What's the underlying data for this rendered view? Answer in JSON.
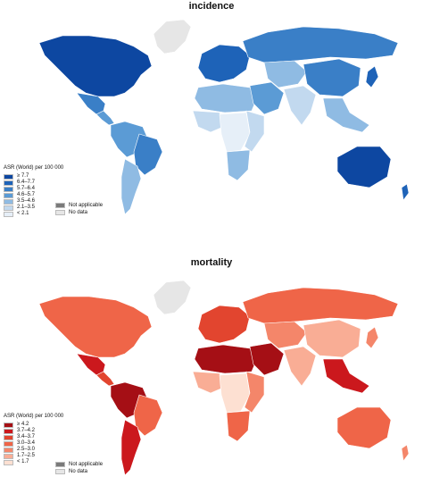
{
  "incidence": {
    "title": "incidence",
    "legend_title": "ASR (World) per 100 000",
    "classes": [
      {
        "label": "≥ 7.7",
        "color": "#0d47a1"
      },
      {
        "label": "6.4–7.7",
        "color": "#1e63b8"
      },
      {
        "label": "5.7–6.4",
        "color": "#3a7fc7"
      },
      {
        "label": "4.6–5.7",
        "color": "#5b9bd5"
      },
      {
        "label": "3.5–4.6",
        "color": "#8fbbe3"
      },
      {
        "label": "2.1–3.5",
        "color": "#c2d9ef"
      },
      {
        "label": "< 2.1",
        "color": "#e6eff8"
      }
    ],
    "not_applicable": "Not applicable",
    "no_data": "No data",
    "regions": {
      "north-america": "#0d47a1",
      "greenland": "#e6e6e6",
      "mexico": "#3a7fc7",
      "central-america": "#5b9bd5",
      "south-america-north": "#5b9bd5",
      "south-america-east": "#3a7fc7",
      "south-america-south": "#8fbbe3",
      "europe": "#1e63b8",
      "north-africa": "#8fbbe3",
      "west-africa": "#c2d9ef",
      "central-africa": "#e6eff8",
      "east-africa": "#c2d9ef",
      "southern-africa": "#8fbbe3",
      "middle-east": "#5b9bd5",
      "russia": "#3a7fc7",
      "central-asia": "#8fbbe3",
      "south-asia": "#c2d9ef",
      "china": "#3a7fc7",
      "southeast-asia": "#8fbbe3",
      "japan": "#1e63b8",
      "australia": "#0d47a1",
      "new-zealand": "#1e63b8"
    }
  },
  "mortality": {
    "title": "mortality",
    "legend_title": "ASR (World) per 100 000",
    "classes": [
      {
        "label": "≥ 4.2",
        "color": "#a50f15"
      },
      {
        "label": "3.7–4.2",
        "color": "#cb181d"
      },
      {
        "label": "3.4–3.7",
        "color": "#e2452f"
      },
      {
        "label": "3.0–3.4",
        "color": "#ef6548"
      },
      {
        "label": "2.5–3.0",
        "color": "#f4866a"
      },
      {
        "label": "1.7–2.5",
        "color": "#f9ad95"
      },
      {
        "label": "< 1.7",
        "color": "#fde0d2"
      }
    ],
    "not_applicable": "Not applicable",
    "no_data": "No data",
    "regions": {
      "north-america": "#ef6548",
      "greenland": "#e6e6e6",
      "mexico": "#cb181d",
      "central-america": "#e2452f",
      "south-america-north": "#a50f15",
      "south-america-east": "#ef6548",
      "south-america-south": "#cb181d",
      "europe": "#e2452f",
      "north-africa": "#a50f15",
      "west-africa": "#f9ad95",
      "central-africa": "#fde0d2",
      "east-africa": "#f4866a",
      "southern-africa": "#ef6548",
      "middle-east": "#a50f15",
      "russia": "#ef6548",
      "central-asia": "#f4866a",
      "south-asia": "#f9ad95",
      "china": "#f9ad95",
      "southeast-asia": "#cb181d",
      "japan": "#f4866a",
      "australia": "#ef6548",
      "new-zealand": "#f4866a"
    }
  }
}
